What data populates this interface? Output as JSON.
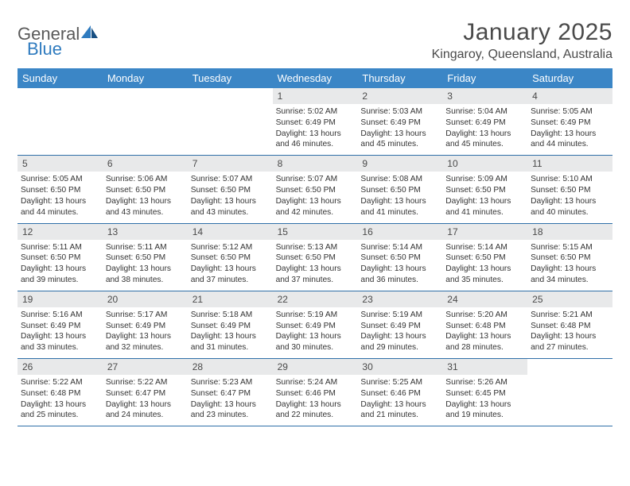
{
  "logo": {
    "part1": "General",
    "part2": "Blue"
  },
  "title": "January 2025",
  "location": "Kingaroy, Queensland, Australia",
  "colors": {
    "header_bg": "#3b86c6",
    "header_text": "#ffffff",
    "daynum_bg": "#e8e9ea",
    "border": "#2f6fa8",
    "logo_gray": "#5a5a5a",
    "logo_blue": "#2f7bbf",
    "body_text": "#333333",
    "title_text": "#4a4a4a",
    "page_bg": "#ffffff"
  },
  "typography": {
    "title_fontsize": 30,
    "location_fontsize": 16,
    "weekday_fontsize": 13,
    "daynum_fontsize": 12,
    "body_fontsize": 10.2,
    "logo_fontsize": 22
  },
  "weekdays": [
    "Sunday",
    "Monday",
    "Tuesday",
    "Wednesday",
    "Thursday",
    "Friday",
    "Saturday"
  ],
  "weeks": [
    [
      {
        "empty": true
      },
      {
        "empty": true
      },
      {
        "empty": true
      },
      {
        "num": "1",
        "sunrise": "Sunrise: 5:02 AM",
        "sunset": "Sunset: 6:49 PM",
        "daylight": "Daylight: 13 hours and 46 minutes."
      },
      {
        "num": "2",
        "sunrise": "Sunrise: 5:03 AM",
        "sunset": "Sunset: 6:49 PM",
        "daylight": "Daylight: 13 hours and 45 minutes."
      },
      {
        "num": "3",
        "sunrise": "Sunrise: 5:04 AM",
        "sunset": "Sunset: 6:49 PM",
        "daylight": "Daylight: 13 hours and 45 minutes."
      },
      {
        "num": "4",
        "sunrise": "Sunrise: 5:05 AM",
        "sunset": "Sunset: 6:49 PM",
        "daylight": "Daylight: 13 hours and 44 minutes."
      }
    ],
    [
      {
        "num": "5",
        "sunrise": "Sunrise: 5:05 AM",
        "sunset": "Sunset: 6:50 PM",
        "daylight": "Daylight: 13 hours and 44 minutes."
      },
      {
        "num": "6",
        "sunrise": "Sunrise: 5:06 AM",
        "sunset": "Sunset: 6:50 PM",
        "daylight": "Daylight: 13 hours and 43 minutes."
      },
      {
        "num": "7",
        "sunrise": "Sunrise: 5:07 AM",
        "sunset": "Sunset: 6:50 PM",
        "daylight": "Daylight: 13 hours and 43 minutes."
      },
      {
        "num": "8",
        "sunrise": "Sunrise: 5:07 AM",
        "sunset": "Sunset: 6:50 PM",
        "daylight": "Daylight: 13 hours and 42 minutes."
      },
      {
        "num": "9",
        "sunrise": "Sunrise: 5:08 AM",
        "sunset": "Sunset: 6:50 PM",
        "daylight": "Daylight: 13 hours and 41 minutes."
      },
      {
        "num": "10",
        "sunrise": "Sunrise: 5:09 AM",
        "sunset": "Sunset: 6:50 PM",
        "daylight": "Daylight: 13 hours and 41 minutes."
      },
      {
        "num": "11",
        "sunrise": "Sunrise: 5:10 AM",
        "sunset": "Sunset: 6:50 PM",
        "daylight": "Daylight: 13 hours and 40 minutes."
      }
    ],
    [
      {
        "num": "12",
        "sunrise": "Sunrise: 5:11 AM",
        "sunset": "Sunset: 6:50 PM",
        "daylight": "Daylight: 13 hours and 39 minutes."
      },
      {
        "num": "13",
        "sunrise": "Sunrise: 5:11 AM",
        "sunset": "Sunset: 6:50 PM",
        "daylight": "Daylight: 13 hours and 38 minutes."
      },
      {
        "num": "14",
        "sunrise": "Sunrise: 5:12 AM",
        "sunset": "Sunset: 6:50 PM",
        "daylight": "Daylight: 13 hours and 37 minutes."
      },
      {
        "num": "15",
        "sunrise": "Sunrise: 5:13 AM",
        "sunset": "Sunset: 6:50 PM",
        "daylight": "Daylight: 13 hours and 37 minutes."
      },
      {
        "num": "16",
        "sunrise": "Sunrise: 5:14 AM",
        "sunset": "Sunset: 6:50 PM",
        "daylight": "Daylight: 13 hours and 36 minutes."
      },
      {
        "num": "17",
        "sunrise": "Sunrise: 5:14 AM",
        "sunset": "Sunset: 6:50 PM",
        "daylight": "Daylight: 13 hours and 35 minutes."
      },
      {
        "num": "18",
        "sunrise": "Sunrise: 5:15 AM",
        "sunset": "Sunset: 6:50 PM",
        "daylight": "Daylight: 13 hours and 34 minutes."
      }
    ],
    [
      {
        "num": "19",
        "sunrise": "Sunrise: 5:16 AM",
        "sunset": "Sunset: 6:49 PM",
        "daylight": "Daylight: 13 hours and 33 minutes."
      },
      {
        "num": "20",
        "sunrise": "Sunrise: 5:17 AM",
        "sunset": "Sunset: 6:49 PM",
        "daylight": "Daylight: 13 hours and 32 minutes."
      },
      {
        "num": "21",
        "sunrise": "Sunrise: 5:18 AM",
        "sunset": "Sunset: 6:49 PM",
        "daylight": "Daylight: 13 hours and 31 minutes."
      },
      {
        "num": "22",
        "sunrise": "Sunrise: 5:19 AM",
        "sunset": "Sunset: 6:49 PM",
        "daylight": "Daylight: 13 hours and 30 minutes."
      },
      {
        "num": "23",
        "sunrise": "Sunrise: 5:19 AM",
        "sunset": "Sunset: 6:49 PM",
        "daylight": "Daylight: 13 hours and 29 minutes."
      },
      {
        "num": "24",
        "sunrise": "Sunrise: 5:20 AM",
        "sunset": "Sunset: 6:48 PM",
        "daylight": "Daylight: 13 hours and 28 minutes."
      },
      {
        "num": "25",
        "sunrise": "Sunrise: 5:21 AM",
        "sunset": "Sunset: 6:48 PM",
        "daylight": "Daylight: 13 hours and 27 minutes."
      }
    ],
    [
      {
        "num": "26",
        "sunrise": "Sunrise: 5:22 AM",
        "sunset": "Sunset: 6:48 PM",
        "daylight": "Daylight: 13 hours and 25 minutes."
      },
      {
        "num": "27",
        "sunrise": "Sunrise: 5:22 AM",
        "sunset": "Sunset: 6:47 PM",
        "daylight": "Daylight: 13 hours and 24 minutes."
      },
      {
        "num": "28",
        "sunrise": "Sunrise: 5:23 AM",
        "sunset": "Sunset: 6:47 PM",
        "daylight": "Daylight: 13 hours and 23 minutes."
      },
      {
        "num": "29",
        "sunrise": "Sunrise: 5:24 AM",
        "sunset": "Sunset: 6:46 PM",
        "daylight": "Daylight: 13 hours and 22 minutes."
      },
      {
        "num": "30",
        "sunrise": "Sunrise: 5:25 AM",
        "sunset": "Sunset: 6:46 PM",
        "daylight": "Daylight: 13 hours and 21 minutes."
      },
      {
        "num": "31",
        "sunrise": "Sunrise: 5:26 AM",
        "sunset": "Sunset: 6:45 PM",
        "daylight": "Daylight: 13 hours and 19 minutes."
      },
      {
        "empty": true
      }
    ]
  ]
}
